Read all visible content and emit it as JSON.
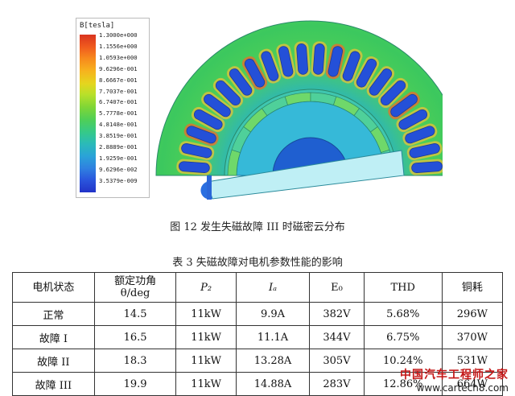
{
  "figure": {
    "legend_title": "B[tesla]",
    "legend_values": [
      "1.3000e+000",
      "1.1556e+000",
      "1.0593e+000",
      "9.6296e-001",
      "8.6667e-001",
      "7.7037e-001",
      "6.7407e-001",
      "5.7778e-001",
      "4.8148e-001",
      "3.8519e-001",
      "2.8889e-001",
      "1.9259e-001",
      "9.6296e-002",
      "3.5379e-009"
    ],
    "caption": "图 12  发生失磁故障 III 时磁密云分布"
  },
  "table": {
    "caption": "表 3 失磁故障对电机参数性能的影响",
    "headers": [
      {
        "line1": "电机状态",
        "line2": ""
      },
      {
        "line1": "额定功角",
        "line2": "θ/deg"
      },
      {
        "line1": "P₂",
        "line2": ""
      },
      {
        "line1": "Iₐ",
        "line2": ""
      },
      {
        "line1": "E₀",
        "line2": ""
      },
      {
        "line1": "THD",
        "line2": ""
      },
      {
        "line1": "铜耗",
        "line2": ""
      }
    ],
    "rows": [
      [
        "正常",
        "14.5",
        "11kW",
        "9.9A",
        "382V",
        "5.68%",
        "296W"
      ],
      [
        "故障 I",
        "16.5",
        "11kW",
        "11.1A",
        "344V",
        "6.75%",
        "370W"
      ],
      [
        "故障 II",
        "18.3",
        "11kW",
        "13.28A",
        "305V",
        "10.24%",
        "531W"
      ],
      [
        "故障 III",
        "19.9",
        "11kW",
        "14.88A",
        "283V",
        "12.86%",
        "664W"
      ]
    ]
  },
  "watermark": {
    "line1": "中国汽车工程师之家",
    "line2": "www.cartech8.com"
  }
}
